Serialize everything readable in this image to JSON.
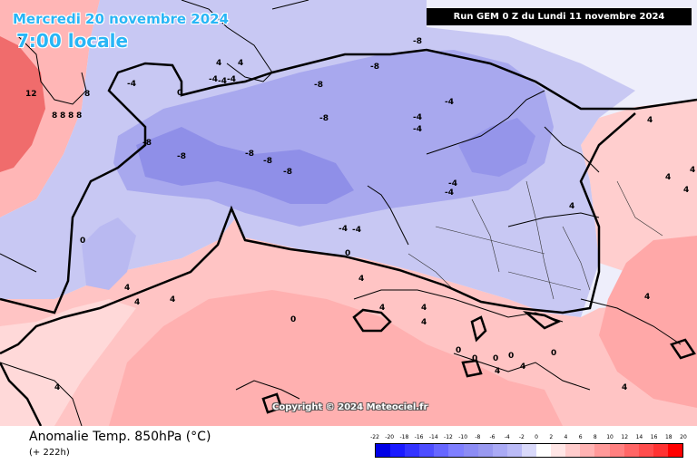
{
  "header": {
    "date": "Mercredi 20 novembre 2024",
    "time": "7:00 locale",
    "run": "Run GEM 0 Z du Lundi 11 novembre 2024",
    "copyright": "Copyright © 2024 Meteociel.fr"
  },
  "footer": {
    "parameter": "Anomalie Temp. 850hPa (°C)",
    "lead": "(+ 222h)"
  },
  "scale": {
    "ticks": [
      "-22",
      "-20",
      "-18",
      "-16",
      "-14",
      "-12",
      "-10",
      "-8",
      "-6",
      "-4",
      "-2",
      "0",
      "2",
      "4",
      "6",
      "8",
      "10",
      "12",
      "14",
      "16",
      "18",
      "20"
    ],
    "colors": [
      "#0000e6",
      "#1a1aff",
      "#3333ff",
      "#4d4dff",
      "#6666ff",
      "#7f7fff",
      "#8c8cf5",
      "#9999f0",
      "#aaaaf5",
      "#bbbbf7",
      "#d9d9fa",
      "#ffffff",
      "#ffe6e6",
      "#ffcccc",
      "#ffb3b3",
      "#ff9999",
      "#ff8080",
      "#ff6666",
      "#ff4d4d",
      "#ff3333",
      "#ff0000"
    ]
  },
  "map": {
    "colors": {
      "warm_far": "#f06868",
      "warm": "#ffb3b3",
      "warm_light": "#ffd6d6",
      "neutral": "#eeeefb",
      "cool_light": "#c8c8f3",
      "cool": "#a9a9ef",
      "cold": "#8f8fe8"
    },
    "contour_labels": [
      {
        "text": "12",
        "type": "greenland"
      },
      {
        "text": "8"
      },
      {
        "text": "8"
      },
      {
        "text": "8"
      },
      {
        "text": "8"
      },
      {
        "text": "8"
      },
      {
        "text": "4"
      },
      {
        "text": "4"
      },
      {
        "text": "4"
      },
      {
        "text": "4"
      },
      {
        "text": "-4"
      },
      {
        "text": "0"
      },
      {
        "text": "-4"
      },
      {
        "text": "-4"
      },
      {
        "text": "-8"
      },
      {
        "text": "-8"
      },
      {
        "text": "-8"
      },
      {
        "text": "-8"
      },
      {
        "text": "-8"
      },
      {
        "text": "-8"
      },
      {
        "text": "-8"
      },
      {
        "text": "-8"
      },
      {
        "text": "-8"
      },
      {
        "text": "-4"
      },
      {
        "text": "-4"
      },
      {
        "text": "-4"
      },
      {
        "text": "-4"
      },
      {
        "text": "-4"
      },
      {
        "text": "-4"
      },
      {
        "text": "-4"
      },
      {
        "text": "0"
      },
      {
        "text": "0"
      },
      {
        "text": "-4"
      },
      {
        "text": "4"
      },
      {
        "text": "4"
      },
      {
        "text": "4"
      },
      {
        "text": "4"
      },
      {
        "text": "4"
      },
      {
        "text": "4"
      },
      {
        "text": "0"
      },
      {
        "text": "0"
      },
      {
        "text": "0"
      },
      {
        "text": "4"
      },
      {
        "text": "4"
      },
      {
        "text": "0"
      },
      {
        "text": "4"
      },
      {
        "text": "4"
      },
      {
        "text": "4"
      },
      {
        "text": "4"
      },
      {
        "text": "4"
      },
      {
        "text": "4"
      },
      {
        "text": "4"
      },
      {
        "text": "0"
      },
      {
        "text": "0"
      }
    ]
  }
}
